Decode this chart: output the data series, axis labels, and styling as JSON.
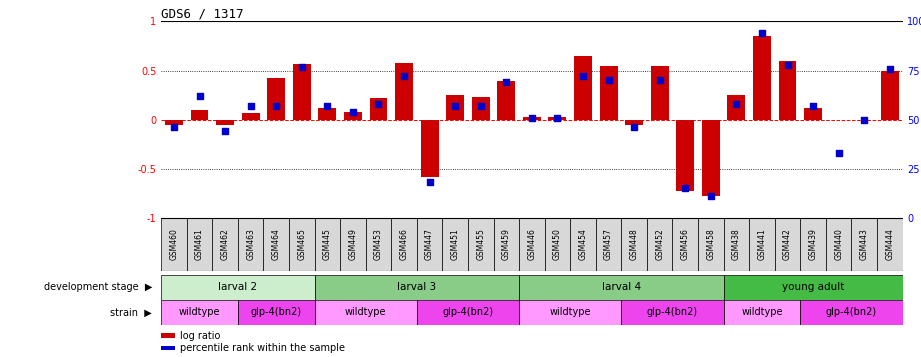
{
  "title": "GDS6 / 1317",
  "samples": [
    "GSM460",
    "GSM461",
    "GSM462",
    "GSM463",
    "GSM464",
    "GSM465",
    "GSM445",
    "GSM449",
    "GSM453",
    "GSM466",
    "GSM447",
    "GSM451",
    "GSM455",
    "GSM459",
    "GSM446",
    "GSM450",
    "GSM454",
    "GSM457",
    "GSM448",
    "GSM452",
    "GSM456",
    "GSM458",
    "GSM438",
    "GSM441",
    "GSM442",
    "GSM439",
    "GSM440",
    "GSM443",
    "GSM444"
  ],
  "log_ratio": [
    -0.05,
    0.1,
    -0.05,
    0.07,
    0.42,
    0.57,
    0.12,
    0.08,
    0.22,
    0.58,
    -0.58,
    0.25,
    0.23,
    0.39,
    0.03,
    0.03,
    0.65,
    0.55,
    -0.05,
    0.55,
    -0.73,
    -0.78,
    0.25,
    0.85,
    0.6,
    0.12,
    0.0,
    0.0,
    0.5
  ],
  "percentile": [
    46,
    62,
    44,
    57,
    57,
    77,
    57,
    54,
    58,
    72,
    18,
    57,
    57,
    69,
    51,
    51,
    72,
    70,
    46,
    70,
    15,
    11,
    58,
    94,
    78,
    57,
    33,
    50,
    76
  ],
  "bar_color": "#cc0000",
  "dot_color": "#0000cc",
  "ylim_left": [
    -1,
    1
  ],
  "ylim_right": [
    0,
    100
  ],
  "yticks_left": [
    -1,
    -0.5,
    0,
    0.5,
    1
  ],
  "yticks_right": [
    0,
    25,
    50,
    75,
    100
  ],
  "hlines_dotted": [
    0.5,
    -0.5
  ],
  "dev_stages": [
    {
      "label": "larval 2",
      "start": 0,
      "end": 5,
      "color": "#cceecc"
    },
    {
      "label": "larval 3",
      "start": 6,
      "end": 13,
      "color": "#88cc88"
    },
    {
      "label": "larval 4",
      "start": 14,
      "end": 21,
      "color": "#88cc88"
    },
    {
      "label": "young adult",
      "start": 22,
      "end": 28,
      "color": "#44bb44"
    }
  ],
  "strains": [
    {
      "label": "wildtype",
      "start": 0,
      "end": 2,
      "color": "#ff99ff"
    },
    {
      "label": "glp-4(bn2)",
      "start": 3,
      "end": 5,
      "color": "#ee44ee"
    },
    {
      "label": "wildtype",
      "start": 6,
      "end": 9,
      "color": "#ff99ff"
    },
    {
      "label": "glp-4(bn2)",
      "start": 10,
      "end": 13,
      "color": "#ee44ee"
    },
    {
      "label": "wildtype",
      "start": 14,
      "end": 17,
      "color": "#ff99ff"
    },
    {
      "label": "glp-4(bn2)",
      "start": 18,
      "end": 21,
      "color": "#ee44ee"
    },
    {
      "label": "wildtype",
      "start": 22,
      "end": 24,
      "color": "#ff99ff"
    },
    {
      "label": "glp-4(bn2)",
      "start": 25,
      "end": 28,
      "color": "#ee44ee"
    }
  ],
  "bar_width": 0.7,
  "n_samples": 29
}
